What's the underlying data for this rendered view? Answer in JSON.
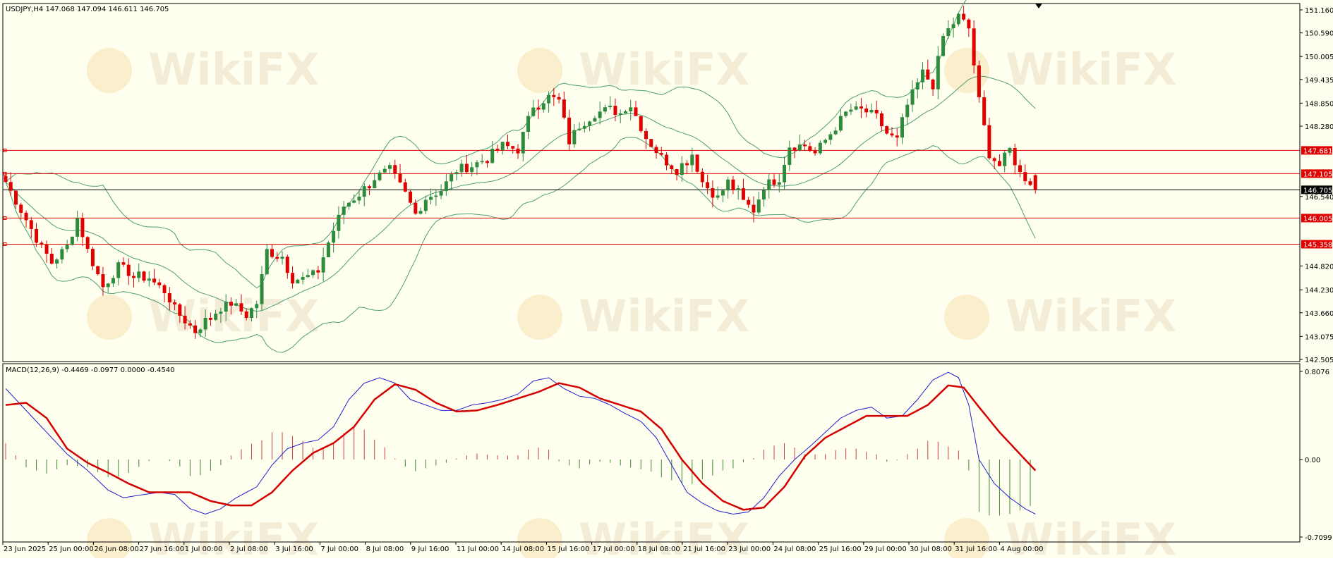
{
  "header": {
    "symbol_line": "USDJPY,H4  147.068 147.094 146.611 146.705"
  },
  "macd_header": {
    "label": "MACD(12,26,9) -0.4469 -0.0977 0.0000 -0.4540"
  },
  "watermark": {
    "text": "WikiFX"
  },
  "colors": {
    "background": "#fffff0",
    "bull_candle": "#2e8b3c",
    "bear_candle": "#e00000",
    "bollinger": "#4f9e6e",
    "level_line": "#e00000",
    "current_line": "#000000",
    "macd_line": "#1f1fd0",
    "signal_line": "#d40000",
    "hist_positive": "#d04040",
    "hist_negative": "#3a8a2a"
  },
  "chart_data": [
    {
      "type": "candlestick",
      "instrument": "USDJPY",
      "timeframe": "H4",
      "ohlc_readout": {
        "open": 147.068,
        "high": 147.094,
        "low": 146.611,
        "close": 146.705
      },
      "y_ticks": [
        "151.160",
        "150.590",
        "150.005",
        "149.435",
        "148.850",
        "148.280",
        "147.681",
        "147.105",
        "146.705",
        "146.540",
        "146.005",
        "145.358",
        "144.820",
        "144.230",
        "143.660",
        "143.075",
        "142.505"
      ],
      "ylim": [
        142.505,
        151.16
      ],
      "x_ticks": [
        "23 Jun 2025",
        "25 Jun 00:00",
        "26 Jun 08:00",
        "27 Jun 16:00",
        "1 Jul 00:00",
        "2 Jul 08:00",
        "3 Jul 16:00",
        "7 Jul 00:00",
        "8 Jul 08:00",
        "9 Jul 16:00",
        "11 Jul 00:00",
        "14 Jul 08:00",
        "15 Jul 16:00",
        "17 Jul 00:00",
        "18 Jul 08:00",
        "21 Jul 16:00",
        "23 Jul 00:00",
        "24 Jul 08:00",
        "25 Jul 16:00",
        "29 Jul 00:00",
        "30 Jul 08:00",
        "31 Jul 16:00",
        "4 Aug 00:00"
      ],
      "horizontal_levels": [
        {
          "label": "147.681",
          "value": 147.681
        },
        {
          "label": "147.105",
          "value": 147.105
        },
        {
          "label": "146.005",
          "value": 146.005
        },
        {
          "label": "145.358",
          "value": 145.358
        }
      ],
      "current_price": {
        "label": "146.705",
        "value": 146.705
      },
      "close_path": [
        [
          0,
          146.9
        ],
        [
          3,
          146.2
        ],
        [
          6,
          145.5
        ],
        [
          9,
          144.9
        ],
        [
          12,
          145.3
        ],
        [
          14,
          146.0
        ],
        [
          16,
          145.2
        ],
        [
          19,
          144.3
        ],
        [
          22,
          144.8
        ],
        [
          25,
          144.6
        ],
        [
          28,
          144.5
        ],
        [
          31,
          144.2
        ],
        [
          34,
          143.6
        ],
        [
          37,
          143.2
        ],
        [
          40,
          143.6
        ],
        [
          44,
          143.9
        ],
        [
          47,
          143.6
        ],
        [
          49,
          143.9
        ],
        [
          51,
          145.2
        ],
        [
          54,
          145.0
        ],
        [
          56,
          144.5
        ],
        [
          59,
          144.5
        ],
        [
          61,
          144.7
        ],
        [
          63,
          145.4
        ],
        [
          66,
          146.3
        ],
        [
          69,
          146.6
        ],
        [
          72,
          147.0
        ],
        [
          75,
          147.2
        ],
        [
          78,
          146.6
        ],
        [
          80,
          146.1
        ],
        [
          82,
          146.5
        ],
        [
          85,
          146.7
        ],
        [
          88,
          147.2
        ],
        [
          91,
          147.3
        ],
        [
          94,
          147.5
        ],
        [
          97,
          147.8
        ],
        [
          100,
          147.7
        ],
        [
          103,
          148.8
        ],
        [
          106,
          149.0
        ],
        [
          108,
          148.9
        ],
        [
          110,
          147.9
        ],
        [
          112,
          148.3
        ],
        [
          115,
          148.6
        ],
        [
          118,
          148.7
        ],
        [
          120,
          148.6
        ],
        [
          122,
          148.8
        ],
        [
          125,
          148.0
        ],
        [
          128,
          147.5
        ],
        [
          131,
          147.2
        ],
        [
          134,
          147.6
        ],
        [
          136,
          146.9
        ],
        [
          139,
          146.5
        ],
        [
          141,
          146.9
        ],
        [
          144,
          146.4
        ],
        [
          146,
          146.2
        ],
        [
          148,
          146.8
        ],
        [
          151,
          147.0
        ],
        [
          153,
          147.8
        ],
        [
          156,
          147.8
        ],
        [
          158,
          147.6
        ],
        [
          161,
          148.1
        ],
        [
          164,
          148.6
        ],
        [
          167,
          148.7
        ],
        [
          170,
          148.5
        ],
        [
          172,
          148.1
        ],
        [
          174,
          148.0
        ],
        [
          176,
          148.8
        ],
        [
          179,
          149.6
        ],
        [
          181,
          149.3
        ],
        [
          183,
          150.5
        ],
        [
          186,
          151.0
        ],
        [
          188,
          150.7
        ],
        [
          190,
          148.9
        ],
        [
          192,
          147.6
        ],
        [
          194,
          147.3
        ],
        [
          196,
          147.7
        ],
        [
          198,
          147.1
        ],
        [
          200,
          146.9
        ],
        [
          201,
          146.7
        ]
      ]
    },
    {
      "type": "macd",
      "parameters": "12,26,9",
      "values_readout": [
        -0.4469,
        -0.0977,
        0.0,
        -0.454
      ],
      "y_ticks": [
        "0.8076",
        "0.00",
        "-0.7099"
      ],
      "ylim": [
        -0.7099,
        0.8076
      ],
      "macd_path": [
        [
          0,
          0.65
        ],
        [
          4,
          0.45
        ],
        [
          8,
          0.25
        ],
        [
          12,
          0.05
        ],
        [
          16,
          -0.1
        ],
        [
          20,
          -0.28
        ],
        [
          23,
          -0.35
        ],
        [
          27,
          -0.32
        ],
        [
          30,
          -0.3
        ],
        [
          33,
          -0.32
        ],
        [
          36,
          -0.45
        ],
        [
          39,
          -0.5
        ],
        [
          42,
          -0.45
        ],
        [
          45,
          -0.35
        ],
        [
          49,
          -0.25
        ],
        [
          52,
          -0.05
        ],
        [
          55,
          0.1
        ],
        [
          58,
          0.15
        ],
        [
          61,
          0.18
        ],
        [
          64,
          0.3
        ],
        [
          67,
          0.55
        ],
        [
          70,
          0.7
        ],
        [
          73,
          0.75
        ],
        [
          76,
          0.7
        ],
        [
          79,
          0.55
        ],
        [
          82,
          0.5
        ],
        [
          85,
          0.45
        ],
        [
          88,
          0.45
        ],
        [
          91,
          0.5
        ],
        [
          94,
          0.52
        ],
        [
          97,
          0.55
        ],
        [
          100,
          0.6
        ],
        [
          103,
          0.72
        ],
        [
          106,
          0.75
        ],
        [
          109,
          0.65
        ],
        [
          112,
          0.58
        ],
        [
          115,
          0.56
        ],
        [
          118,
          0.5
        ],
        [
          121,
          0.42
        ],
        [
          124,
          0.35
        ],
        [
          127,
          0.2
        ],
        [
          130,
          -0.05
        ],
        [
          133,
          -0.3
        ],
        [
          136,
          -0.4
        ],
        [
          139,
          -0.47
        ],
        [
          142,
          -0.5
        ],
        [
          145,
          -0.48
        ],
        [
          148,
          -0.35
        ],
        [
          151,
          -0.15
        ],
        [
          154,
          0.0
        ],
        [
          157,
          0.12
        ],
        [
          160,
          0.25
        ],
        [
          163,
          0.38
        ],
        [
          166,
          0.45
        ],
        [
          169,
          0.48
        ],
        [
          172,
          0.38
        ],
        [
          175,
          0.4
        ],
        [
          178,
          0.55
        ],
        [
          181,
          0.73
        ],
        [
          184,
          0.8
        ],
        [
          186,
          0.75
        ],
        [
          188,
          0.5
        ],
        [
          190,
          0.0
        ],
        [
          193,
          -0.22
        ],
        [
          196,
          -0.35
        ],
        [
          199,
          -0.45
        ],
        [
          201,
          -0.5
        ]
      ],
      "signal_path": [
        [
          0,
          0.5
        ],
        [
          4,
          0.52
        ],
        [
          8,
          0.38
        ],
        [
          12,
          0.1
        ],
        [
          16,
          -0.03
        ],
        [
          20,
          -0.12
        ],
        [
          24,
          -0.22
        ],
        [
          28,
          -0.3
        ],
        [
          32,
          -0.3
        ],
        [
          36,
          -0.3
        ],
        [
          40,
          -0.38
        ],
        [
          44,
          -0.42
        ],
        [
          48,
          -0.42
        ],
        [
          52,
          -0.3
        ],
        [
          56,
          -0.1
        ],
        [
          60,
          0.06
        ],
        [
          64,
          0.15
        ],
        [
          68,
          0.3
        ],
        [
          72,
          0.55
        ],
        [
          76,
          0.69
        ],
        [
          80,
          0.64
        ],
        [
          84,
          0.52
        ],
        [
          88,
          0.44
        ],
        [
          92,
          0.45
        ],
        [
          96,
          0.5
        ],
        [
          100,
          0.56
        ],
        [
          104,
          0.62
        ],
        [
          108,
          0.7
        ],
        [
          112,
          0.66
        ],
        [
          116,
          0.56
        ],
        [
          120,
          0.5
        ],
        [
          124,
          0.44
        ],
        [
          128,
          0.28
        ],
        [
          132,
          0.0
        ],
        [
          136,
          -0.22
        ],
        [
          140,
          -0.38
        ],
        [
          144,
          -0.46
        ],
        [
          148,
          -0.44
        ],
        [
          152,
          -0.25
        ],
        [
          156,
          0.03
        ],
        [
          160,
          0.2
        ],
        [
          164,
          0.3
        ],
        [
          168,
          0.4
        ],
        [
          172,
          0.4
        ],
        [
          176,
          0.4
        ],
        [
          180,
          0.5
        ],
        [
          184,
          0.68
        ],
        [
          187,
          0.66
        ],
        [
          190,
          0.48
        ],
        [
          194,
          0.25
        ],
        [
          198,
          0.05
        ],
        [
          201,
          -0.1
        ]
      ]
    }
  ]
}
